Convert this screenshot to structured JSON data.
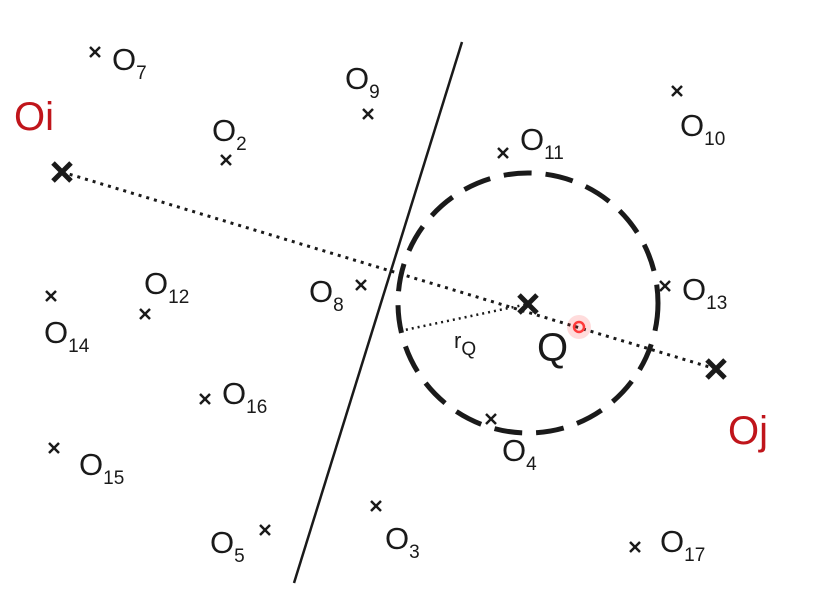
{
  "colors": {
    "ink": "#1a1a1a",
    "pivot": "#c0151b",
    "query_highlight": "#ff3b3b"
  },
  "pivots": {
    "left": {
      "label": "Oi",
      "icon": "cross-mark-icon"
    },
    "right": {
      "label": "Oj",
      "icon": "cross-mark-icon"
    }
  },
  "query": {
    "label": "Q",
    "radius_label": "r",
    "radius_sub": "Q",
    "icon": "cross-mark-icon"
  },
  "objects": [
    {
      "base": "O",
      "sub": "7"
    },
    {
      "base": "O",
      "sub": "9"
    },
    {
      "base": "O",
      "sub": "2"
    },
    {
      "base": "O",
      "sub": "11"
    },
    {
      "base": "O",
      "sub": "10"
    },
    {
      "base": "O",
      "sub": "12"
    },
    {
      "base": "O",
      "sub": "8"
    },
    {
      "base": "O",
      "sub": "13"
    },
    {
      "base": "O",
      "sub": "14"
    },
    {
      "base": "O",
      "sub": "16"
    },
    {
      "base": "O",
      "sub": "4"
    },
    {
      "base": "O",
      "sub": "15"
    },
    {
      "base": "O",
      "sub": "5"
    },
    {
      "base": "O",
      "sub": "3"
    },
    {
      "base": "O",
      "sub": "17"
    }
  ]
}
